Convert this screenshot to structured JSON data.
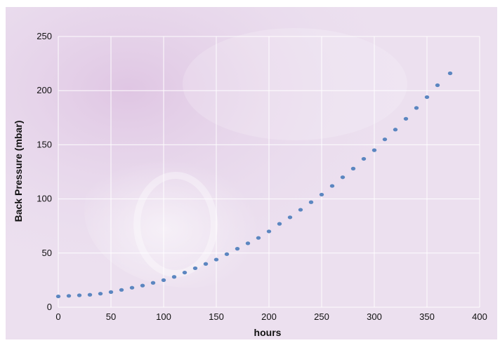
{
  "chart_data": {
    "type": "scatter",
    "title": "",
    "xlabel": "hours",
    "ylabel": "Back Pressure  (mbar)",
    "xlim": [
      0,
      400
    ],
    "ylim": [
      0,
      250
    ],
    "x_ticks": [
      "0",
      "50",
      "100",
      "150",
      "200",
      "250",
      "300",
      "350",
      "400"
    ],
    "y_ticks": [
      "0",
      "50",
      "100",
      "150",
      "200",
      "250"
    ],
    "grid": true,
    "legend": "none",
    "marker_color": "#5b86c0",
    "series": [
      {
        "x": [
          0,
          10,
          20,
          30,
          40,
          50,
          60,
          70,
          80,
          90,
          100,
          110,
          120,
          130,
          140,
          150,
          160,
          170,
          180,
          190,
          200,
          210,
          220,
          230,
          240,
          250,
          260,
          270,
          280,
          290,
          300,
          310,
          320,
          330,
          340,
          350,
          360,
          372
        ],
        "y": [
          10,
          10.5,
          11,
          11.5,
          12.5,
          14,
          16,
          18,
          20,
          22.5,
          25,
          28,
          32,
          36,
          40,
          44,
          49,
          54,
          59,
          64,
          70,
          77,
          83,
          90,
          97,
          104,
          112,
          120,
          128,
          137,
          145,
          155,
          164,
          174,
          184,
          194,
          205,
          216
        ]
      }
    ]
  }
}
